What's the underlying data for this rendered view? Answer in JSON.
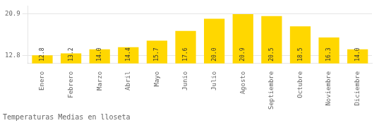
{
  "chart_data": {
    "type": "bar",
    "title": "Temperaturas Medias en lloseta",
    "categories": [
      "Enero",
      "Febrero",
      "Marzo",
      "Abril",
      "Mayo",
      "Junio",
      "Julio",
      "Agosto",
      "Septiembre",
      "Octubre",
      "Noviembre",
      "Diciembre"
    ],
    "values": [
      12.8,
      13.2,
      14.0,
      14.4,
      15.7,
      17.6,
      20.0,
      20.9,
      20.5,
      18.5,
      16.3,
      14.0
    ],
    "value_labels": [
      "12.8",
      "13.2",
      "14.0",
      "14.4",
      "15.7",
      "17.6",
      "20.0",
      "20.9",
      "20.5",
      "18.5",
      "16.3",
      "14.0"
    ],
    "data_labels": true,
    "color": "#FFD700",
    "ylim": [
      11.2,
      22.5
    ],
    "yticks": [
      12.8,
      20.9
    ],
    "grid": true
  }
}
